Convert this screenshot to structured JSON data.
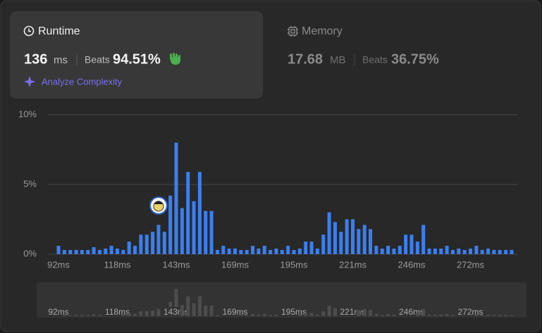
{
  "runtime": {
    "title": "Runtime",
    "value": "136",
    "unit": "ms",
    "beats_label": "Beats",
    "beats": "94.51%",
    "analyze": "Analyze Complexity"
  },
  "memory": {
    "title": "Memory",
    "value": "17.68",
    "unit": "MB",
    "beats_label": "Beats",
    "beats": "36.75%"
  },
  "chart_data": {
    "type": "bar",
    "color": "#3b7ff0",
    "grid": true,
    "categories": [
      "92ms",
      null,
      null,
      null,
      null,
      null,
      null,
      null,
      null,
      null,
      "118ms",
      null,
      null,
      null,
      null,
      null,
      null,
      null,
      null,
      null,
      "143ms",
      null,
      null,
      null,
      null,
      null,
      null,
      null,
      null,
      null,
      "169ms",
      null,
      null,
      null,
      null,
      null,
      null,
      null,
      null,
      null,
      "195ms",
      null,
      null,
      null,
      null,
      null,
      null,
      null,
      null,
      null,
      "221ms",
      null,
      null,
      null,
      null,
      null,
      null,
      null,
      null,
      null,
      "246ms",
      null,
      null,
      null,
      null,
      null,
      null,
      null,
      null,
      null,
      "272ms",
      null,
      null,
      null,
      null,
      null,
      null,
      null
    ],
    "values": [
      0.6,
      0.3,
      0.3,
      0.3,
      0.3,
      0.3,
      0.5,
      0.3,
      0.4,
      0.6,
      0.4,
      0.3,
      0.9,
      0.6,
      1.4,
      1.4,
      1.6,
      2.1,
      1.6,
      4.2,
      8.0,
      3.3,
      5.9,
      3.8,
      5.9,
      3.1,
      3.1,
      0.3,
      0.6,
      0.4,
      0.4,
      0.3,
      0.3,
      0.6,
      0.4,
      0.6,
      0.3,
      0.4,
      0.3,
      0.6,
      0.3,
      0.4,
      0.9,
      0.9,
      0.4,
      1.4,
      3.0,
      2.3,
      1.6,
      2.5,
      2.5,
      1.8,
      2.1,
      1.8,
      0.6,
      0.4,
      0.6,
      0.4,
      0.6,
      1.4,
      1.4,
      0.9,
      2.1,
      0.4,
      0.4,
      0.4,
      0.6,
      0.3,
      0.4,
      0.3,
      0.4,
      0.6,
      0.3,
      0.4,
      0.3,
      0.3,
      0.3,
      0.3
    ],
    "ylim": [
      0,
      10
    ],
    "yticks": [
      {
        "value": 0,
        "label": "0%"
      },
      {
        "value": 5,
        "label": "5%"
      },
      {
        "value": 10,
        "label": "10%"
      }
    ]
  }
}
